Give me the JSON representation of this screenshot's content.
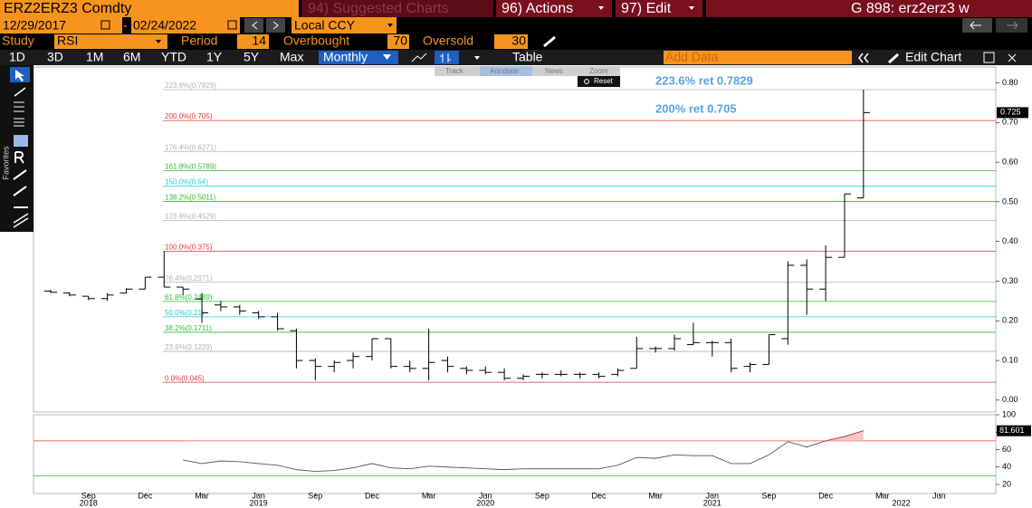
{
  "header": {
    "security": "ERZ2ERZ3 Comdty",
    "suggested": "94) Suggested Charts",
    "actions": "96) Actions",
    "edit": "97) Edit",
    "function": "G 898: erz2erz3 w"
  },
  "range": {
    "start": "12/29/2017",
    "separator": "-",
    "end": "02/24/2022",
    "currency": "Local CCY"
  },
  "study": {
    "label": "Study",
    "name": "RSI",
    "period_label": "Period",
    "period": 14,
    "overbought_label": "Overbought",
    "overbought": 70,
    "oversold_label": "Oversold",
    "oversold": 30
  },
  "toolbar": {
    "periods": [
      "1D",
      "3D",
      "1M",
      "6M",
      "YTD",
      "1Y",
      "5Y",
      "Max"
    ],
    "frequency": "Monthly",
    "table": "Table",
    "add_data": "Add Data",
    "edit_chart": "Edit Chart"
  },
  "chart_tools": {
    "items": [
      "Track",
      "Annotate",
      "News",
      "Zoom"
    ],
    "reset": "Reset"
  },
  "sidebar": {
    "label": "Favorites"
  },
  "chart_data": [
    {
      "type": "ohlc",
      "color": "#000000",
      "categories": [
        "2018-07",
        "2018-08",
        "2018-09",
        "2018-10",
        "2018-11",
        "2018-12",
        "2019-01",
        "2019-02",
        "2019-03",
        "2019-04",
        "2019-05",
        "2019-06",
        "2019-07",
        "2019-08",
        "2019-09",
        "2019-10",
        "2019-11",
        "2019-12",
        "2020-01",
        "2020-02",
        "2020-03",
        "2020-04",
        "2020-05",
        "2020-06",
        "2020-07",
        "2020-08",
        "2020-09",
        "2020-10",
        "2020-11",
        "2020-12",
        "2021-01",
        "2021-02",
        "2021-03",
        "2021-04",
        "2021-05",
        "2021-06",
        "2021-07",
        "2021-08",
        "2021-09",
        "2021-10",
        "2021-11",
        "2021-12",
        "2022-01",
        "2022-02"
      ],
      "open": [
        0.275,
        0.27,
        0.262,
        0.256,
        0.27,
        0.28,
        0.31,
        0.285,
        0.255,
        0.24,
        0.235,
        0.22,
        0.21,
        0.175,
        0.1,
        0.085,
        0.1,
        0.11,
        0.155,
        0.085,
        0.08,
        0.1,
        0.08,
        0.075,
        0.07,
        0.055,
        0.065,
        0.065,
        0.065,
        0.065,
        0.065,
        0.08,
        0.13,
        0.13,
        0.14,
        0.145,
        0.145,
        0.085,
        0.09,
        0.155,
        0.34,
        0.28,
        0.36,
        0.51
      ],
      "high": [
        0.278,
        0.272,
        0.262,
        0.27,
        0.282,
        0.31,
        0.375,
        0.285,
        0.27,
        0.25,
        0.24,
        0.225,
        0.22,
        0.18,
        0.105,
        0.1,
        0.12,
        0.155,
        0.155,
        0.1,
        0.18,
        0.11,
        0.085,
        0.085,
        0.08,
        0.065,
        0.07,
        0.075,
        0.07,
        0.07,
        0.08,
        0.16,
        0.135,
        0.165,
        0.195,
        0.15,
        0.155,
        0.095,
        0.165,
        0.35,
        0.355,
        0.39,
        0.52,
        0.7829
      ],
      "low": [
        0.27,
        0.262,
        0.252,
        0.25,
        0.27,
        0.28,
        0.285,
        0.265,
        0.195,
        0.225,
        0.215,
        0.205,
        0.175,
        0.08,
        0.05,
        0.07,
        0.08,
        0.1,
        0.08,
        0.07,
        0.05,
        0.07,
        0.065,
        0.065,
        0.05,
        0.05,
        0.055,
        0.06,
        0.055,
        0.055,
        0.06,
        0.08,
        0.12,
        0.125,
        0.14,
        0.11,
        0.07,
        0.07,
        0.09,
        0.14,
        0.215,
        0.25,
        0.36,
        0.51
      ],
      "close": [
        0.272,
        0.265,
        0.256,
        0.265,
        0.28,
        0.31,
        0.285,
        0.28,
        0.22,
        0.235,
        0.225,
        0.21,
        0.18,
        0.1,
        0.085,
        0.095,
        0.11,
        0.155,
        0.085,
        0.08,
        0.095,
        0.085,
        0.075,
        0.07,
        0.055,
        0.06,
        0.065,
        0.065,
        0.065,
        0.06,
        0.075,
        0.13,
        0.13,
        0.155,
        0.145,
        0.145,
        0.08,
        0.09,
        0.165,
        0.34,
        0.28,
        0.36,
        0.52,
        0.725
      ],
      "ylim": [
        -0.03,
        0.84
      ],
      "yticks": [
        {
          "value": 0,
          "label": "0.00"
        },
        {
          "value": 0.1,
          "label": "0.10"
        },
        {
          "value": 0.2,
          "label": "0.20"
        },
        {
          "value": 0.3,
          "label": "0.30"
        },
        {
          "value": 0.4,
          "label": "0.40"
        },
        {
          "value": 0.5,
          "label": "0.50"
        },
        {
          "value": 0.6,
          "label": "0.60"
        },
        {
          "value": 0.7,
          "label": "0.70"
        },
        {
          "value": 0.8,
          "label": "0.80"
        }
      ],
      "xticks": [
        {
          "value": "2018-09",
          "label": "Sep"
        },
        {
          "value": "2018-12",
          "label": "Dec"
        },
        {
          "value": "2019-03",
          "label": "Mar"
        },
        {
          "value": "2019-06",
          "label": "Jun"
        },
        {
          "value": "2019-09",
          "label": "Sep"
        },
        {
          "value": "2019-12",
          "label": "Dec"
        },
        {
          "value": "2020-03",
          "label": "Mar"
        },
        {
          "value": "2020-06",
          "label": "Jun"
        },
        {
          "value": "2020-09",
          "label": "Sep"
        },
        {
          "value": "2020-12",
          "label": "Dec"
        },
        {
          "value": "2021-03",
          "label": "Mar"
        },
        {
          "value": "2021-06",
          "label": "Jun"
        },
        {
          "value": "2021-09",
          "label": "Sep"
        },
        {
          "value": "2021-12",
          "label": "Dec"
        },
        {
          "value": "2022-03",
          "label": "Mar"
        },
        {
          "value": "2022-06",
          "label": "Jun"
        }
      ],
      "year_labels": [
        {
          "value": "2018-09",
          "label": "2018"
        },
        {
          "value": "2019-06",
          "label": "2019"
        },
        {
          "value": "2020-06",
          "label": "2020"
        },
        {
          "value": "2021-06",
          "label": "2021"
        },
        {
          "value": "2022-04",
          "label": "2022"
        }
      ],
      "fib_levels": [
        {
          "value": 0.7829,
          "label": "223.6%(0.7829)",
          "color": "#b0b0b0"
        },
        {
          "value": 0.705,
          "label": "200.0%(0.705)",
          "color": "#e03a3a"
        },
        {
          "value": 0.6271,
          "label": "176.4%(0.6271)",
          "color": "#b0b0b0"
        },
        {
          "value": 0.5789,
          "label": "161.8%(0.5789)",
          "color": "#33bb33"
        },
        {
          "value": 0.54,
          "label": "150.0%(0.54)",
          "color": "#22c8dd"
        },
        {
          "value": 0.5011,
          "label": "138.2%(0.5011)",
          "color": "#33bb33"
        },
        {
          "value": 0.4529,
          "label": "123.6%(0.4529)",
          "color": "#b0b0b0"
        },
        {
          "value": 0.375,
          "label": "100.0%(0.375)",
          "color": "#e03a3a"
        },
        {
          "value": 0.2971,
          "label": "76.4%(0.2971)",
          "color": "#b0b0b0"
        },
        {
          "value": 0.2489,
          "label": "61.8%(0.2489)",
          "color": "#33bb33"
        },
        {
          "value": 0.21,
          "label": "50.0%(0.21)",
          "color": "#22c8dd"
        },
        {
          "value": 0.1711,
          "label": "38.2%(0.1711)",
          "color": "#33bb33"
        },
        {
          "value": 0.1229,
          "label": "23.6%(0.1229)",
          "color": "#b0b0b0"
        },
        {
          "value": 0.045,
          "label": "0.0%(0.045)",
          "color": "#e03a3a"
        }
      ],
      "annotations": [
        "223.6% ret 0.7829",
        "200% ret 0.705"
      ],
      "annotation_color": "#5aa2e2"
    },
    {
      "type": "line",
      "color": "#555555",
      "overbought_color": "#e03a3a",
      "values": [
        null,
        null,
        null,
        null,
        null,
        null,
        null,
        48,
        44,
        47,
        46,
        44,
        42,
        37,
        35,
        36,
        39,
        44,
        39,
        38,
        41,
        40,
        39,
        38,
        37,
        38,
        38,
        38,
        38,
        38,
        42,
        51,
        50,
        54,
        53,
        53,
        44,
        44,
        54,
        69,
        63,
        70,
        75,
        81.601
      ],
      "ylim": [
        9.6,
        100
      ],
      "yticks": [
        20,
        40,
        60,
        80,
        100
      ]
    }
  ]
}
